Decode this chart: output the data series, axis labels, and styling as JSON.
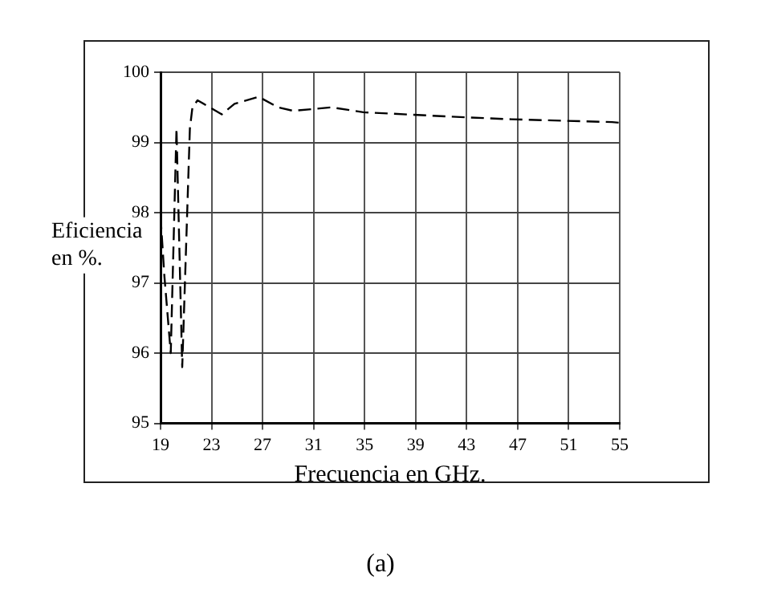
{
  "chart_data": {
    "type": "line",
    "xlabel": "Frecuencia en GHz.",
    "ylabel": "Eficiencia en %.",
    "annotations": [
      "(a)"
    ],
    "series": [
      {
        "color": "#000000",
        "x": [
          19,
          19.3,
          19.8,
          20.25,
          20.7,
          21.3,
          21.5,
          21.9,
          23.8,
          24.8,
          26.7,
          28.2,
          29.4,
          32.4,
          34.9,
          41.5,
          46.5,
          54.4,
          55
        ],
        "values": [
          97.95,
          97.1,
          96.0,
          99.2,
          95.8,
          99.2,
          99.5,
          99.6,
          99.4,
          99.55,
          99.65,
          99.5,
          99.45,
          99.5,
          99.43,
          99.37,
          99.33,
          99.29,
          99.28
        ]
      }
    ],
    "xlim": [
      19,
      55
    ],
    "xticks": [
      19,
      23,
      27,
      31,
      35,
      39,
      43,
      47,
      51,
      55
    ],
    "ylim": [
      95,
      100
    ],
    "yticks": [
      95,
      96,
      97,
      98,
      99,
      100
    ],
    "grid": true,
    "legend": false,
    "marker": "none",
    "line_style": "dashed"
  }
}
